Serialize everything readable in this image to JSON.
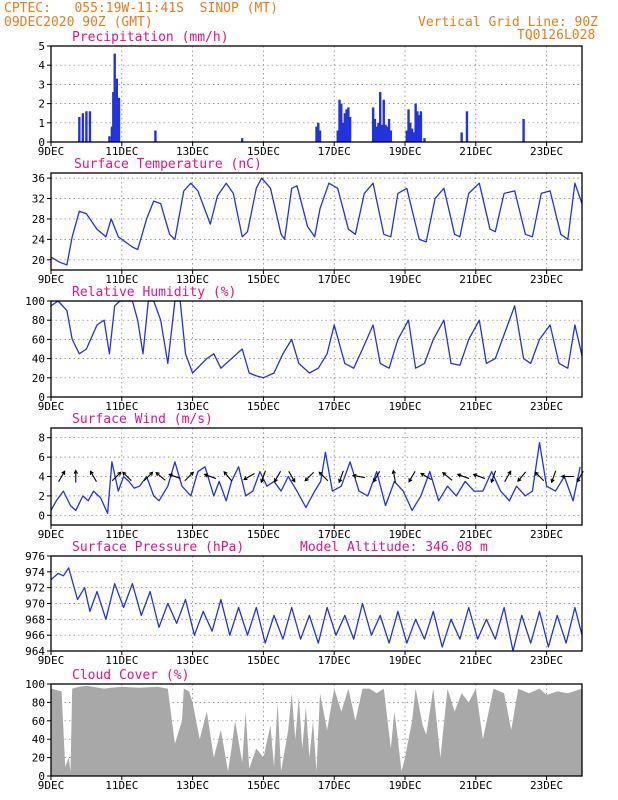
{
  "header": {
    "line1": "CPTEC:   055:19W-11:41S  SINOP (MT)",
    "line2": "09DEC2020 90Z (GMT)",
    "right1": "Vertical Grid Line: 90Z",
    "right2": "TQ0126L028"
  },
  "colors": {
    "header": "#e87d1e",
    "title": "#e0148a",
    "series": "#2233dd",
    "cloud": "#a8a8a8",
    "arrow": "#000000"
  },
  "x_axis": {
    "range_days": [
      9,
      24
    ],
    "ticks": [
      {
        "day": 9,
        "label": "9DEC"
      },
      {
        "day": 11,
        "label": "11DEC"
      },
      {
        "day": 13,
        "label": "13DEC"
      },
      {
        "day": 15,
        "label": "15DEC"
      },
      {
        "day": 17,
        "label": "17DEC"
      },
      {
        "day": 19,
        "label": "19DEC"
      },
      {
        "day": 21,
        "label": "21DEC"
      },
      {
        "day": 23,
        "label": "23DEC"
      }
    ]
  },
  "chart_data": [
    {
      "id": "precip",
      "type": "bar",
      "title": "Precipitation (mm/h)",
      "ylim": [
        0,
        5
      ],
      "yticks": [
        0,
        1,
        2,
        3,
        4,
        5
      ],
      "grid": true,
      "series": [
        {
          "x": [
            9.8,
            9.9,
            10.0,
            10.1,
            10.65,
            10.72,
            10.76,
            10.8,
            10.86,
            10.92,
            11.95,
            14.4,
            16.5,
            16.55,
            16.6,
            17.1,
            17.15,
            17.2,
            17.25,
            17.3,
            17.35,
            17.4,
            17.45,
            18.1,
            18.15,
            18.2,
            18.25,
            18.3,
            18.35,
            18.4,
            18.45,
            18.5,
            18.55,
            18.6,
            19.05,
            19.1,
            19.15,
            19.2,
            19.25,
            19.3,
            19.35,
            19.4,
            19.45,
            19.55,
            20.6,
            20.75,
            22.35
          ],
          "values": [
            1.3,
            1.5,
            1.6,
            1.6,
            0.3,
            0.8,
            2.6,
            4.6,
            3.3,
            2.3,
            0.6,
            0.2,
            0.8,
            1.0,
            0.6,
            0.6,
            2.2,
            2.0,
            1.0,
            1.5,
            1.7,
            1.8,
            1.3,
            1.8,
            1.2,
            0.8,
            1.0,
            2.6,
            0.9,
            2.2,
            0.9,
            0.8,
            1.2,
            0.6,
            0.6,
            1.7,
            1.0,
            0.7,
            0.5,
            2.0,
            1.6,
            1.4,
            1.6,
            0.2,
            0.5,
            1.6,
            1.2
          ]
        }
      ]
    },
    {
      "id": "temp",
      "type": "line",
      "title": "Surface Temperature (nC)",
      "ylim": [
        18,
        37
      ],
      "yticks": [
        20,
        24,
        28,
        32,
        36
      ],
      "grid": true,
      "series": [
        {
          "x": [
            9.0,
            9.25,
            9.45,
            9.6,
            9.8,
            10.0,
            10.3,
            10.55,
            10.7,
            10.9,
            11.1,
            11.3,
            11.45,
            11.7,
            11.9,
            12.1,
            12.35,
            12.5,
            12.75,
            12.95,
            13.15,
            13.5,
            13.7,
            13.95,
            14.15,
            14.4,
            14.55,
            14.8,
            14.95,
            15.2,
            15.5,
            15.6,
            15.8,
            15.95,
            16.25,
            16.45,
            16.6,
            16.85,
            17.1,
            17.4,
            17.6,
            17.85,
            18.1,
            18.4,
            18.6,
            18.8,
            19.05,
            19.4,
            19.6,
            19.85,
            20.1,
            20.4,
            20.55,
            20.8,
            21.1,
            21.4,
            21.55,
            21.8,
            22.1,
            22.4,
            22.6,
            22.85,
            23.1,
            23.4,
            23.6,
            23.8,
            24.0
          ],
          "values": [
            20.5,
            19.5,
            19.0,
            24.5,
            29.5,
            29.0,
            26.0,
            24.5,
            28.0,
            24.5,
            23.5,
            22.5,
            22.0,
            28.0,
            31.5,
            31.0,
            25.0,
            24.0,
            33.5,
            35.0,
            33.5,
            27.0,
            32.5,
            35.0,
            33.0,
            24.5,
            25.5,
            34.0,
            36.0,
            34.0,
            25.0,
            24.0,
            34.0,
            34.5,
            26.5,
            24.5,
            30.0,
            35.0,
            34.0,
            26.0,
            25.0,
            33.0,
            35.0,
            25.0,
            24.5,
            33.0,
            34.0,
            24.0,
            23.5,
            32.0,
            34.0,
            25.0,
            24.5,
            33.0,
            35.0,
            26.0,
            25.5,
            33.0,
            33.5,
            25.0,
            24.5,
            33.0,
            33.5,
            25.0,
            24.0,
            35.0,
            31.0
          ]
        }
      ]
    },
    {
      "id": "rh",
      "type": "line",
      "title": "Relative Humidity (%)",
      "ylim": [
        0,
        100
      ],
      "yticks": [
        0,
        20,
        40,
        60,
        80,
        100
      ],
      "grid": true,
      "series": [
        {
          "x": [
            9.0,
            9.2,
            9.45,
            9.6,
            9.8,
            10.0,
            10.3,
            10.5,
            10.65,
            10.8,
            10.95,
            11.1,
            11.3,
            11.45,
            11.6,
            11.75,
            11.9,
            12.1,
            12.3,
            12.5,
            12.65,
            12.8,
            13.0,
            13.4,
            13.6,
            13.8,
            14.1,
            14.4,
            14.6,
            14.8,
            15.0,
            15.3,
            15.55,
            15.8,
            16.0,
            16.3,
            16.55,
            16.8,
            17.0,
            17.3,
            17.55,
            17.8,
            18.1,
            18.3,
            18.55,
            18.8,
            19.1,
            19.3,
            19.55,
            19.8,
            20.1,
            20.3,
            20.55,
            20.8,
            21.1,
            21.3,
            21.55,
            21.8,
            22.1,
            22.35,
            22.55,
            22.8,
            23.1,
            23.35,
            23.6,
            23.8,
            24.0
          ],
          "values": [
            95,
            100,
            90,
            60,
            45,
            50,
            75,
            80,
            45,
            95,
            100,
            100,
            100,
            80,
            45,
            100,
            100,
            80,
            35,
            100,
            100,
            45,
            25,
            40,
            45,
            30,
            40,
            50,
            25,
            22,
            20,
            25,
            45,
            60,
            35,
            25,
            30,
            45,
            75,
            35,
            30,
            50,
            75,
            35,
            30,
            60,
            80,
            30,
            35,
            60,
            80,
            35,
            33,
            60,
            80,
            35,
            40,
            65,
            95,
            40,
            35,
            60,
            75,
            35,
            30,
            75,
            43
          ]
        }
      ]
    },
    {
      "id": "wind",
      "type": "line",
      "title": "Surface Wind (m/s)",
      "ylim": [
        -1,
        9
      ],
      "yticks": [
        0,
        2,
        4,
        6,
        8
      ],
      "grid": true,
      "series": [
        {
          "x": [
            9.0,
            9.15,
            9.35,
            9.55,
            9.7,
            9.9,
            10.05,
            10.2,
            10.4,
            10.6,
            10.72,
            10.9,
            11.05,
            11.2,
            11.35,
            11.5,
            11.7,
            11.9,
            12.05,
            12.3,
            12.5,
            12.7,
            12.95,
            13.15,
            13.35,
            13.6,
            13.75,
            13.95,
            14.1,
            14.3,
            14.5,
            14.7,
            14.9,
            15.1,
            15.3,
            15.5,
            15.7,
            15.95,
            16.2,
            16.45,
            16.62,
            16.75,
            16.95,
            17.2,
            17.45,
            17.7,
            17.95,
            18.2,
            18.45,
            18.7,
            18.95,
            19.2,
            19.45,
            19.7,
            19.95,
            20.2,
            20.45,
            20.7,
            20.95,
            21.2,
            21.45,
            21.7,
            21.95,
            22.15,
            22.4,
            22.6,
            22.8,
            23.0,
            23.25,
            23.5,
            23.75,
            23.95
          ],
          "values": [
            0.5,
            1.5,
            2.5,
            1.0,
            0.5,
            2.0,
            1.5,
            2.5,
            1.8,
            0.2,
            5.5,
            2.5,
            4.0,
            3.5,
            2.8,
            3.0,
            4.0,
            2.0,
            1.5,
            3.0,
            5.5,
            3.0,
            2.0,
            4.5,
            5.0,
            2.0,
            3.5,
            1.5,
            3.5,
            5.0,
            2.0,
            2.5,
            4.5,
            3.0,
            3.5,
            2.5,
            4.0,
            2.5,
            0.8,
            2.5,
            3.5,
            6.5,
            2.5,
            3.0,
            5.5,
            2.5,
            2.0,
            4.5,
            1.0,
            3.5,
            2.5,
            0.5,
            2.0,
            4.5,
            1.5,
            3.0,
            2.0,
            3.5,
            2.5,
            2.5,
            4.5,
            2.5,
            1.5,
            3.0,
            2.0,
            2.5,
            7.5,
            3.0,
            2.5,
            4.0,
            1.5,
            5.0
          ]
        }
      ],
      "arrows": [
        {
          "x": 9.3,
          "dir": 60
        },
        {
          "x": 9.7,
          "dir": 90
        },
        {
          "x": 10.2,
          "dir": 120
        },
        {
          "x": 10.85,
          "dir": 45
        },
        {
          "x": 11.15,
          "dir": 135
        },
        {
          "x": 11.75,
          "dir": 45
        },
        {
          "x": 12.1,
          "dir": 140
        },
        {
          "x": 12.5,
          "dir": 160
        },
        {
          "x": 12.9,
          "dir": 45
        },
        {
          "x": 13.5,
          "dir": 160
        },
        {
          "x": 14.0,
          "dir": 130
        },
        {
          "x": 14.6,
          "dir": 210
        },
        {
          "x": 15.0,
          "dir": 250
        },
        {
          "x": 15.4,
          "dir": 240
        },
        {
          "x": 15.8,
          "dir": 300
        },
        {
          "x": 16.3,
          "dir": 225
        },
        {
          "x": 16.7,
          "dir": 135
        },
        {
          "x": 17.2,
          "dir": 250
        },
        {
          "x": 17.7,
          "dir": 170
        },
        {
          "x": 18.2,
          "dir": 240
        },
        {
          "x": 18.7,
          "dir": 100
        },
        {
          "x": 19.2,
          "dir": 240
        },
        {
          "x": 19.6,
          "dir": 150
        },
        {
          "x": 20.2,
          "dir": 140
        },
        {
          "x": 20.65,
          "dir": 160
        },
        {
          "x": 21.1,
          "dir": 160
        },
        {
          "x": 21.5,
          "dir": 250
        },
        {
          "x": 21.9,
          "dir": 60
        },
        {
          "x": 22.3,
          "dir": 230
        },
        {
          "x": 22.8,
          "dir": 135
        },
        {
          "x": 23.2,
          "dir": 250
        },
        {
          "x": 23.6,
          "dir": 180
        },
        {
          "x": 23.95,
          "dir": 240
        }
      ]
    },
    {
      "id": "pres",
      "type": "line",
      "title": "Surface Pressure (hPa)",
      "annotation": "Model Altitude: 346.08 m",
      "ylim": [
        964,
        976
      ],
      "yticks": [
        964,
        966,
        968,
        970,
        972,
        974,
        976
      ],
      "grid": true,
      "series": [
        {
          "x": [
            9.0,
            9.2,
            9.35,
            9.5,
            9.75,
            9.95,
            10.1,
            10.3,
            10.55,
            10.8,
            11.05,
            11.3,
            11.55,
            11.8,
            12.05,
            12.3,
            12.55,
            12.8,
            13.05,
            13.3,
            13.55,
            13.8,
            14.05,
            14.3,
            14.55,
            14.8,
            15.05,
            15.3,
            15.55,
            15.8,
            16.05,
            16.3,
            16.55,
            16.8,
            17.05,
            17.3,
            17.55,
            17.8,
            18.05,
            18.3,
            18.55,
            18.8,
            19.05,
            19.3,
            19.55,
            19.8,
            20.05,
            20.3,
            20.55,
            20.8,
            21.05,
            21.3,
            21.55,
            21.8,
            22.05,
            22.3,
            22.55,
            22.8,
            23.05,
            23.3,
            23.55,
            23.8,
            24.0
          ],
          "values": [
            973,
            973.8,
            973.5,
            974.5,
            970.5,
            972.0,
            969.0,
            971.5,
            968.0,
            972.5,
            969.5,
            972.5,
            968.5,
            971.5,
            967.0,
            970.0,
            967.5,
            970.5,
            966.0,
            969.0,
            966.5,
            970.5,
            966.0,
            969.5,
            966.0,
            969.5,
            965.0,
            968.5,
            965.5,
            969.5,
            965.5,
            968.5,
            965.0,
            969.5,
            966.0,
            968.5,
            965.5,
            970.0,
            966.0,
            968.5,
            965.0,
            969.0,
            965.0,
            968.0,
            965.5,
            969.0,
            964.5,
            968.0,
            965.5,
            969.5,
            965.5,
            968.0,
            965.5,
            969.5,
            964.0,
            968.5,
            965.0,
            969.0,
            964.5,
            968.5,
            965.0,
            969.5,
            966.0
          ]
        }
      ]
    },
    {
      "id": "cloud",
      "type": "area",
      "title": "Cloud Cover (%)",
      "ylim": [
        0,
        100
      ],
      "yticks": [
        0,
        20,
        40,
        60,
        80,
        100
      ],
      "grid": true,
      "series": [
        {
          "x": [
            9.0,
            9.3,
            9.4,
            9.5,
            9.55,
            9.6,
            9.8,
            10.0,
            10.5,
            10.7,
            11.0,
            11.5,
            12.0,
            12.3,
            12.5,
            12.7,
            12.75,
            12.9,
            13.0,
            13.2,
            13.4,
            13.6,
            13.8,
            14.0,
            14.1,
            14.2,
            14.4,
            14.5,
            14.6,
            14.8,
            15.0,
            15.2,
            15.3,
            15.4,
            15.5,
            15.7,
            15.8,
            15.9,
            16.0,
            16.1,
            16.2,
            16.3,
            16.4,
            16.5,
            16.6,
            16.8,
            17.0,
            17.2,
            17.4,
            17.6,
            17.8,
            18.0,
            18.2,
            18.4,
            18.6,
            18.7,
            18.8,
            18.9,
            19.0,
            19.2,
            19.3,
            19.5,
            19.6,
            19.8,
            20.0,
            20.2,
            20.4,
            20.6,
            20.8,
            21.0,
            21.2,
            21.5,
            21.8,
            22.0,
            22.2,
            22.5,
            22.8,
            23.0,
            23.3,
            23.6,
            24.0
          ],
          "values": [
            95,
            92,
            10,
            20,
            5,
            95,
            97,
            98,
            95,
            96,
            97,
            96,
            97,
            95,
            35,
            60,
            95,
            92,
            80,
            40,
            70,
            20,
            50,
            5,
            30,
            60,
            15,
            70,
            8,
            30,
            20,
            55,
            10,
            80,
            5,
            50,
            90,
            40,
            85,
            30,
            75,
            20,
            60,
            5,
            90,
            50,
            95,
            70,
            95,
            60,
            95,
            95,
            90,
            95,
            30,
            70,
            40,
            5,
            20,
            60,
            95,
            55,
            45,
            95,
            20,
            95,
            70,
            90,
            80,
            95,
            40,
            95,
            90,
            50,
            95,
            90,
            95,
            88,
            92,
            90,
            95
          ]
        }
      ]
    }
  ]
}
